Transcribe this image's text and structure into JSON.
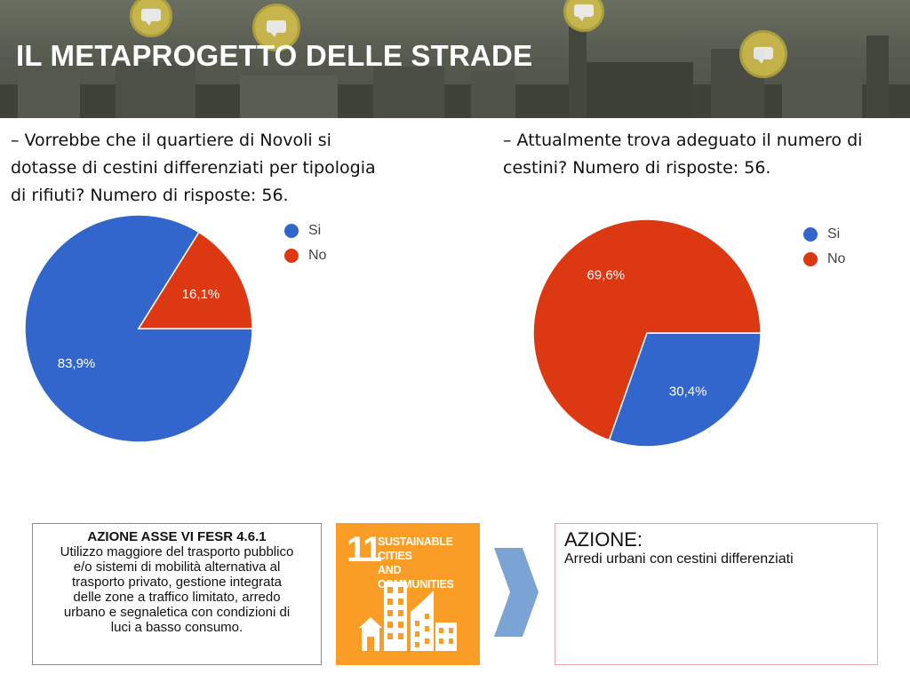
{
  "banner": {
    "title": "IL METAPROGETTO DELLE STRADE"
  },
  "colors": {
    "si": "#3366cc",
    "no": "#dc3912",
    "sdg_orange": "#f99d26",
    "chevron": "#7ba3d4"
  },
  "left_question": {
    "lines": [
      "– Vorrebbe che il quartiere di Novoli si",
      "dotasse di cestini differenziati per tipologia",
      "di rifiuti? Numero di risposte: 56."
    ]
  },
  "right_question": {
    "lines": [
      "– Attualmente trova adeguato il numero di",
      "cestini? Numero di risposte: 56."
    ]
  },
  "chart_data": [
    {
      "type": "pie",
      "title": "",
      "categories": [
        "Si",
        "No"
      ],
      "values": [
        83.9,
        16.1
      ],
      "labels": [
        "83,9%",
        "16,1%"
      ],
      "legend_placement": "right",
      "colors": [
        "#3366cc",
        "#dc3912"
      ]
    },
    {
      "type": "pie",
      "title": "",
      "categories": [
        "Si",
        "No"
      ],
      "values": [
        30.4,
        69.6
      ],
      "labels": [
        "30,4%",
        "69,6%"
      ],
      "legend_placement": "right",
      "colors": [
        "#3366cc",
        "#dc3912"
      ]
    }
  ],
  "action_box": {
    "heading": "AZIONE ASSE VI FESR 4.6.1",
    "lines": [
      "Utilizzo maggiore del trasporto pubblico",
      "e/o sistemi di mobilità alternativa al",
      "trasporto privato, gestione integrata",
      "delle zone a traffico limitato, arredo",
      "urbano e segnaletica con condizioni di",
      "luci a basso consumo."
    ]
  },
  "sdg": {
    "number": "11",
    "label_line1": "SUSTAINABLE CITIES",
    "label_line2": "AND COMMUNITIES",
    "icon": "city-buildings-icon"
  },
  "azione": {
    "title": "AZIONE:",
    "text": "Arredi urbani con cestini differenziati"
  }
}
